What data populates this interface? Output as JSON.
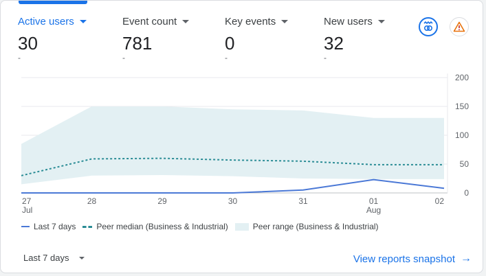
{
  "metrics": [
    {
      "label": "Active users",
      "value": "30",
      "delta": "-"
    },
    {
      "label": "Event count",
      "value": "781",
      "delta": "-"
    },
    {
      "label": "Key events",
      "value": "0",
      "delta": "-"
    },
    {
      "label": "New users",
      "value": "32",
      "delta": "-"
    }
  ],
  "icons": {
    "insights": "insights-icon",
    "alert": "warning-icon"
  },
  "colors": {
    "accent": "#1a73e8",
    "line": "#4a78d6",
    "median": "#2a8c95",
    "range": "#e3f0f3"
  },
  "chart_data": {
    "type": "line",
    "x": [
      "27",
      "28",
      "29",
      "30",
      "31",
      "01",
      "02"
    ],
    "x_sublabels": [
      "Jul",
      "",
      "",
      "",
      "",
      "Aug",
      ""
    ],
    "y_ticks": [
      0,
      50,
      100,
      150,
      200
    ],
    "ylim": [
      0,
      200
    ],
    "y_axis_position": "right",
    "grid": true,
    "series": [
      {
        "name": "Last 7 days",
        "values": [
          0,
          0,
          0,
          0,
          5,
          23,
          8
        ]
      },
      {
        "name": "Peer median (Business & Industrial)",
        "values": [
          30,
          59,
          60,
          57,
          55,
          49,
          49
        ]
      },
      {
        "name": "Peer range (Business & Industrial)",
        "low": [
          15,
          30,
          31,
          29,
          25,
          24,
          24
        ],
        "high": [
          85,
          150,
          150,
          145,
          143,
          130,
          130
        ]
      }
    ],
    "legend_position": "bottom"
  },
  "footer": {
    "range_label": "Last 7 days",
    "view_link": "View reports snapshot",
    "arrow": "→"
  }
}
